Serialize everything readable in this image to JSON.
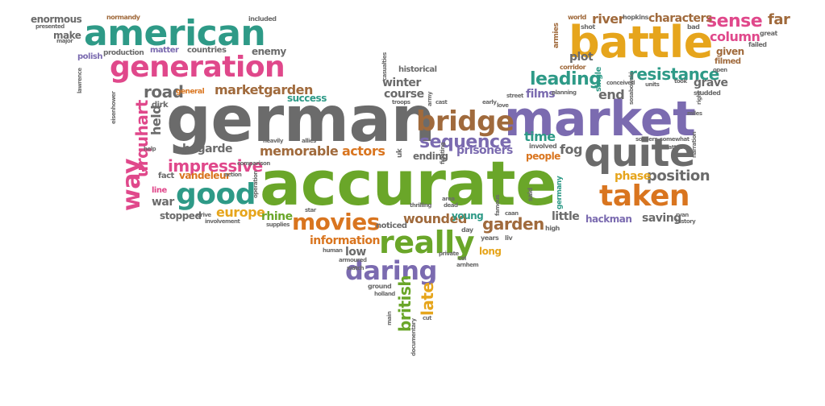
{
  "palette": {
    "gray": "#6b6b6b",
    "green": "#2e9a87",
    "purple": "#7b6bb0",
    "orange": "#d9751f",
    "lime": "#6aa629",
    "pink": "#e0488b",
    "gold": "#e6a51c",
    "brown": "#a06a3c"
  },
  "words": [
    {
      "text": "german",
      "color": "#6b6b6b"
    },
    {
      "text": "accurate",
      "color": "#6aa629"
    },
    {
      "text": "market",
      "color": "#7b6bb0"
    },
    {
      "text": "american",
      "color": "#2e9a87"
    },
    {
      "text": "battle",
      "color": "#e6a51c"
    },
    {
      "text": "generation",
      "color": "#e0488b"
    },
    {
      "text": "quite",
      "color": "#6b6b6b"
    },
    {
      "text": "taken",
      "color": "#d9751f"
    },
    {
      "text": "bridge",
      "color": "#a06a3c"
    },
    {
      "text": "good",
      "color": "#2e9a87"
    },
    {
      "text": "really",
      "color": "#6aa629"
    },
    {
      "text": "daring",
      "color": "#7b6bb0"
    },
    {
      "text": "movies",
      "color": "#d9751f"
    },
    {
      "text": "sequence",
      "color": "#7b6bb0"
    },
    {
      "text": "way",
      "color": "#e0488b"
    },
    {
      "text": "leading",
      "color": "#2e9a87"
    },
    {
      "text": "resistance",
      "color": "#2e9a87"
    },
    {
      "text": "sense",
      "color": "#e0488b"
    },
    {
      "text": "far",
      "color": "#a06a3c"
    },
    {
      "text": "column",
      "color": "#e0488b"
    },
    {
      "text": "river",
      "color": "#a06a3c"
    },
    {
      "text": "characters",
      "color": "#a06a3c"
    },
    {
      "text": "impressive",
      "color": "#e0488b"
    },
    {
      "text": "road",
      "color": "#6b6b6b"
    },
    {
      "text": "marketgarden",
      "color": "#a06a3c"
    },
    {
      "text": "memorable",
      "color": "#a06a3c"
    },
    {
      "text": "actors",
      "color": "#d9751f"
    },
    {
      "text": "prisoners",
      "color": "#7b6bb0"
    },
    {
      "text": "garden",
      "color": "#a06a3c"
    },
    {
      "text": "position",
      "color": "#6b6b6b"
    },
    {
      "text": "urquhart",
      "color": "#e0488b"
    },
    {
      "text": "wounded",
      "color": "#a06a3c"
    },
    {
      "text": "information",
      "color": "#d9751f"
    },
    {
      "text": "europe",
      "color": "#e6a51c"
    },
    {
      "text": "rhine",
      "color": "#6aa629"
    },
    {
      "text": "british",
      "color": "#6aa629"
    },
    {
      "text": "late",
      "color": "#e6a51c"
    },
    {
      "text": "time",
      "color": "#2e9a87"
    },
    {
      "text": "fog",
      "color": "#6b6b6b"
    },
    {
      "text": "winter",
      "color": "#6b6b6b"
    },
    {
      "text": "course",
      "color": "#6b6b6b"
    },
    {
      "text": "films",
      "color": "#7b6bb0"
    },
    {
      "text": "end",
      "color": "#6b6b6b"
    },
    {
      "text": "plot",
      "color": "#6b6b6b"
    },
    {
      "text": "little",
      "color": "#6b6b6b"
    },
    {
      "text": "hackman",
      "color": "#7b6bb0"
    },
    {
      "text": "phase",
      "color": "#e6a51c"
    },
    {
      "text": "saving",
      "color": "#6b6b6b"
    },
    {
      "text": "grave",
      "color": "#6b6b6b"
    },
    {
      "text": "given",
      "color": "#a06a3c"
    },
    {
      "text": "bogarde",
      "color": "#6b6b6b"
    },
    {
      "text": "vandeleur",
      "color": "#d9751f"
    },
    {
      "text": "held",
      "color": "#6b6b6b"
    },
    {
      "text": "war",
      "color": "#6b6b6b"
    },
    {
      "text": "stopped",
      "color": "#6b6b6b"
    },
    {
      "text": "success",
      "color": "#2e9a87"
    },
    {
      "text": "enemy",
      "color": "#6b6b6b"
    },
    {
      "text": "make",
      "color": "#6b6b6b"
    },
    {
      "text": "enormous",
      "color": "#6b6b6b"
    },
    {
      "text": "matter",
      "color": "#7b6bb0"
    },
    {
      "text": "countries",
      "color": "#6b6b6b"
    },
    {
      "text": "production",
      "color": "#6b6b6b"
    },
    {
      "text": "polish",
      "color": "#7b6bb0"
    },
    {
      "text": "ending",
      "color": "#6b6b6b"
    },
    {
      "text": "people",
      "color": "#d9751f"
    },
    {
      "text": "young",
      "color": "#2e9a87"
    },
    {
      "text": "noticed",
      "color": "#6b6b6b"
    },
    {
      "text": "low",
      "color": "#6b6b6b"
    },
    {
      "text": "long",
      "color": "#e6a51c"
    },
    {
      "text": "filmed",
      "color": "#a06a3c"
    },
    {
      "text": "line",
      "color": "#e0488b"
    },
    {
      "text": "fact",
      "color": "#6b6b6b"
    },
    {
      "text": "dirk",
      "color": "#6b6b6b"
    },
    {
      "text": "general",
      "color": "#d9751f"
    },
    {
      "text": "historical",
      "color": "#6b6b6b"
    },
    {
      "text": "single",
      "color": "#2e9a87"
    },
    {
      "text": "normandy",
      "color": "#a06a3c"
    },
    {
      "text": "included",
      "color": "#6b6b6b"
    },
    {
      "text": "world",
      "color": "#a06a3c"
    },
    {
      "text": "hopkins",
      "color": "#6b6b6b"
    },
    {
      "text": "shot",
      "color": "#6b6b6b"
    },
    {
      "text": "bad",
      "color": "#6b6b6b"
    },
    {
      "text": "armies",
      "color": "#a06a3c"
    },
    {
      "text": "great",
      "color": "#6b6b6b"
    },
    {
      "text": "failed",
      "color": "#6b6b6b"
    },
    {
      "text": "corridor",
      "color": "#a06a3c"
    },
    {
      "text": "conceived",
      "color": "#6b6b6b"
    },
    {
      "text": "planning",
      "color": "#6b6b6b"
    },
    {
      "text": "soldiers",
      "color": "#6b6b6b"
    },
    {
      "text": "battalion",
      "color": "#6b6b6b"
    },
    {
      "text": "narration",
      "color": "#6b6b6b"
    },
    {
      "text": "somewhat",
      "color": "#6b6b6b"
    },
    {
      "text": "involved",
      "color": "#6b6b6b"
    },
    {
      "text": "germany",
      "color": "#2e9a87"
    },
    {
      "text": "famous",
      "color": "#6b6b6b"
    },
    {
      "text": "said",
      "color": "#6b6b6b"
    },
    {
      "text": "caan",
      "color": "#6b6b6b"
    },
    {
      "text": "ryan",
      "color": "#6b6b6b"
    },
    {
      "text": "history",
      "color": "#6b6b6b"
    },
    {
      "text": "high",
      "color": "#6b6b6b"
    },
    {
      "text": "liv",
      "color": "#6b6b6b"
    },
    {
      "text": "years",
      "color": "#6b6b6b"
    },
    {
      "text": "day",
      "color": "#6b6b6b"
    },
    {
      "text": "area",
      "color": "#6b6b6b"
    },
    {
      "text": "dead",
      "color": "#6b6b6b"
    },
    {
      "text": "thrilling",
      "color": "#6b6b6b"
    },
    {
      "text": "star",
      "color": "#6b6b6b"
    },
    {
      "text": "supplies",
      "color": "#6b6b6b"
    },
    {
      "text": "involvement",
      "color": "#6b6b6b"
    },
    {
      "text": "drive",
      "color": "#6b6b6b"
    },
    {
      "text": "human",
      "color": "#6b6b6b"
    },
    {
      "text": "armoured",
      "color": "#6b6b6b"
    },
    {
      "text": "watch",
      "color": "#6b6b6b"
    },
    {
      "text": "ground",
      "color": "#6b6b6b"
    },
    {
      "text": "holland",
      "color": "#6b6b6b"
    },
    {
      "text": "private",
      "color": "#6b6b6b"
    },
    {
      "text": "col",
      "color": "#6b6b6b"
    },
    {
      "text": "arnhem",
      "color": "#6b6b6b"
    },
    {
      "text": "documentary",
      "color": "#6b6b6b"
    },
    {
      "text": "main",
      "color": "#6b6b6b"
    },
    {
      "text": "cut",
      "color": "#6b6b6b"
    },
    {
      "text": "troops",
      "color": "#6b6b6b"
    },
    {
      "text": "cast",
      "color": "#6b6b6b"
    },
    {
      "text": "early",
      "color": "#6b6b6b"
    },
    {
      "text": "love",
      "color": "#6b6b6b"
    },
    {
      "text": "street",
      "color": "#6b6b6b"
    },
    {
      "text": "heavily",
      "color": "#6b6b6b"
    },
    {
      "text": "allies",
      "color": "#6b6b6b"
    },
    {
      "text": "comparison",
      "color": "#6b6b6b"
    },
    {
      "text": "action",
      "color": "#6b6b6b"
    },
    {
      "text": "help",
      "color": "#6b6b6b"
    },
    {
      "text": "studded",
      "color": "#6b6b6b"
    },
    {
      "text": "took",
      "color": "#6b6b6b"
    },
    {
      "text": "units",
      "color": "#6b6b6b"
    },
    {
      "text": "open",
      "color": "#6b6b6b"
    },
    {
      "text": "right",
      "color": "#6b6b6b"
    },
    {
      "text": "miles",
      "color": "#6b6b6b"
    },
    {
      "text": "lawrence",
      "color": "#6b6b6b"
    },
    {
      "text": "eisenhower",
      "color": "#6b6b6b"
    },
    {
      "text": "major",
      "color": "#6b6b6b"
    },
    {
      "text": "presented",
      "color": "#6b6b6b"
    },
    {
      "text": "casualties",
      "color": "#6b6b6b"
    },
    {
      "text": "army",
      "color": "#6b6b6b"
    },
    {
      "text": "uk",
      "color": "#6b6b6b"
    },
    {
      "text": "operation",
      "color": "#6b6b6b"
    },
    {
      "text": "sosabowski",
      "color": "#6b6b6b"
    },
    {
      "text": "fighting",
      "color": "#6b6b6b"
    }
  ]
}
